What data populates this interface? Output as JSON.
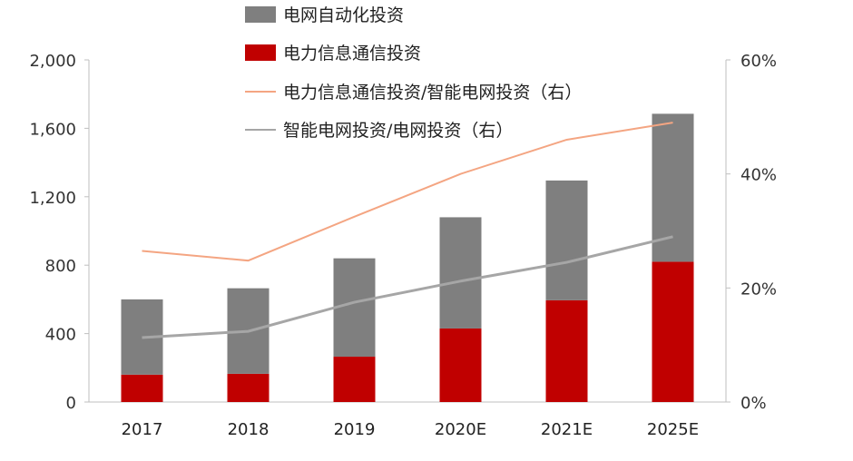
{
  "chart_data": {
    "type": "bar",
    "stacked": true,
    "categories": [
      "2017",
      "2018",
      "2019",
      "2020E",
      "2021E",
      "2025E"
    ],
    "series": [
      {
        "name": "电力信息通信投资",
        "kind": "bar",
        "axis": "left",
        "color": "#c00000",
        "values": [
          160,
          165,
          265,
          430,
          595,
          820
        ]
      },
      {
        "name": "电网自动化投资",
        "kind": "bar",
        "axis": "left",
        "color": "#7f7f7f",
        "values": [
          440,
          500,
          575,
          650,
          700,
          865
        ]
      },
      {
        "name": "电力信息通信投资/智能电网投资（右）",
        "kind": "line",
        "axis": "right",
        "color": "#f4a582",
        "values": [
          26.5,
          24.8,
          32.5,
          40.0,
          46.0,
          49.0
        ]
      },
      {
        "name": "智能电网投资/电网投资（右）",
        "kind": "line",
        "axis": "right",
        "color": "#a6a6a6",
        "values": [
          11.3,
          12.4,
          17.5,
          21.2,
          24.5,
          29.0
        ]
      }
    ],
    "left_axis": {
      "min": 0,
      "max": 2000,
      "ticks": [
        "0",
        "400",
        "800",
        "1,200",
        "1,600",
        "2,000"
      ]
    },
    "right_axis": {
      "min": 0,
      "max": 60,
      "ticks": [
        "0%",
        "20%",
        "40%",
        "60%"
      ]
    },
    "legend_position": "top",
    "grid": false,
    "title": "",
    "xlabel": "",
    "ylabel": ""
  }
}
